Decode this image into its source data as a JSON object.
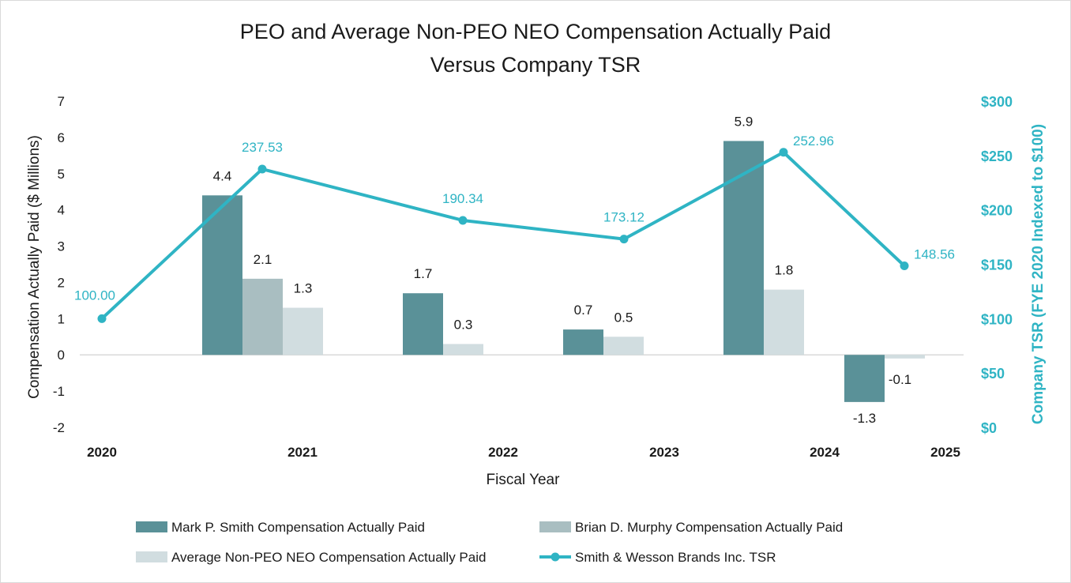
{
  "chart_data": {
    "type": "bar",
    "title": [
      "PEO and Average Non-PEO NEO Compensation Actually Paid",
      "Versus Company TSR"
    ],
    "xlabel": "Fiscal Year",
    "ylabel": "Compensation Actually Paid ($ Millions)",
    "y2label": "Company TSR (FYE 2020 Indexed to $100)",
    "ylim": [
      -2,
      7
    ],
    "yticks": [
      "-2",
      "-1",
      "0",
      "1",
      "2",
      "3",
      "4",
      "5",
      "6",
      "7"
    ],
    "y2lim": [
      0,
      300
    ],
    "y2ticks": [
      "$0",
      "$50",
      "$100",
      "$150",
      "$200",
      "$250",
      "$300"
    ],
    "x_tick_labels": [
      "2020",
      "2021",
      "2022",
      "2023",
      "2024",
      "2025"
    ],
    "bar_groups": [
      "2021",
      "2022",
      "2023",
      "2024",
      "2025"
    ],
    "series": [
      {
        "name": "Mark P. Smith Compensation Actually Paid",
        "kind": "bar",
        "color": "#5a9198",
        "values": [
          4.4,
          1.7,
          0.7,
          5.9,
          -1.3
        ],
        "labels": [
          "4.4",
          "1.7",
          "0.7",
          "5.9",
          "-1.3"
        ]
      },
      {
        "name": "Brian D. Murphy Compensation Actually Paid",
        "kind": "bar",
        "color": "#a9bec1",
        "values": [
          2.1,
          null,
          null,
          null,
          null
        ],
        "labels": [
          "2.1",
          "",
          "",
          "",
          ""
        ]
      },
      {
        "name": "Average Non-PEO NEO Compensation Actually Paid",
        "kind": "bar",
        "color": "#d1dde0",
        "values": [
          1.3,
          0.3,
          0.5,
          1.8,
          -0.1
        ],
        "labels": [
          "1.3",
          "0.3",
          "0.5",
          "1.8",
          "-0.1"
        ]
      },
      {
        "name": "Smith & Wesson Brands Inc. TSR",
        "kind": "line",
        "axis": "right",
        "color": "#2fb4c4",
        "x": [
          "2020",
          "2021",
          "2022",
          "2023",
          "2024",
          "2025"
        ],
        "values": [
          100.0,
          237.53,
          190.34,
          173.12,
          252.96,
          148.56
        ],
        "labels": [
          "100.00",
          "237.53",
          "190.34",
          "173.12",
          "252.96",
          "148.56"
        ]
      }
    ],
    "legend_position": "bottom"
  }
}
